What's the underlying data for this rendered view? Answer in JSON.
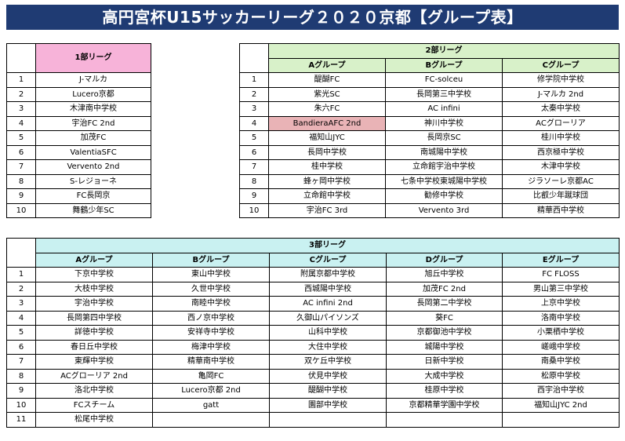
{
  "title": "高円宮杯U15サッカーリーグ２０２０京都【グループ表】",
  "league1": {
    "header": "1部リーグ",
    "rows": [
      {
        "no": "1",
        "team": "J-マルカ"
      },
      {
        "no": "2",
        "team": "Lucero京都"
      },
      {
        "no": "3",
        "team": "木津南中学校"
      },
      {
        "no": "4",
        "team": "宇治FC 2nd"
      },
      {
        "no": "5",
        "team": "加茂FC"
      },
      {
        "no": "6",
        "team": "ValentiaSFC"
      },
      {
        "no": "7",
        "team": "Vervento 2nd"
      },
      {
        "no": "8",
        "team": "S-レジョーネ"
      },
      {
        "no": "9",
        "team": "FC長岡京"
      },
      {
        "no": "10",
        "team": "舞鶴少年SC"
      }
    ]
  },
  "league2": {
    "header": "2部リーグ",
    "groups": [
      "Aグループ",
      "Bグループ",
      "Cグループ"
    ],
    "rows": [
      {
        "no": "1",
        "a": "醍醐FC",
        "b": "FC-solceu",
        "c": "修学院中学校"
      },
      {
        "no": "2",
        "a": "紫光SC",
        "b": "長岡第三中学校",
        "c": "J-マルカ 2nd"
      },
      {
        "no": "3",
        "a": "朱六FC",
        "b": "AC infini",
        "c": "太秦中学校"
      },
      {
        "no": "4",
        "a": "BandieraAFC 2nd",
        "b": "神川中学校",
        "c": "ACグローリア"
      },
      {
        "no": "5",
        "a": "福知山JYC",
        "b": "長岡京SC",
        "c": "桂川中学校"
      },
      {
        "no": "6",
        "a": "長岡中学校",
        "b": "南城陽中学校",
        "c": "西京極中学校"
      },
      {
        "no": "7",
        "a": "桂中学校",
        "b": "立命館宇治中学校",
        "c": "木津中学校"
      },
      {
        "no": "8",
        "a": "蜂ヶ岡中学校",
        "b": "七条中学校東城陽中学校",
        "c": "ジラソーレ京都AC"
      },
      {
        "no": "9",
        "a": "立命館中学校",
        "b": "勧修中学校",
        "c": "比叡少年蹴球団"
      },
      {
        "no": "10",
        "a": "宇治FC 3rd",
        "b": "Vervento 3rd",
        "c": "精華西中学校"
      }
    ]
  },
  "league3": {
    "header": "3部リーグ",
    "groups": [
      "Aグループ",
      "Bグループ",
      "Cグループ",
      "Dグループ",
      "Eグループ"
    ],
    "rows": [
      {
        "no": "1",
        "a": "下京中学校",
        "b": "東山中学校",
        "c": "附属京都中学校",
        "d": "旭丘中学校",
        "e": "FC FLOSS"
      },
      {
        "no": "2",
        "a": "大枝中学校",
        "b": "久世中学校",
        "c": "西城陽中学校",
        "d": "加茂FC 2nd",
        "e": "男山第三中学校"
      },
      {
        "no": "3",
        "a": "宇治中学校",
        "b": "南睦中学校",
        "c": "AC infini 2nd",
        "d": "長岡第二中学校",
        "e": "上京中学校"
      },
      {
        "no": "4",
        "a": "長岡第四中学校",
        "b": "西ノ京中学校",
        "c": "久御山パイソンズ",
        "d": "葵FC",
        "e": "洛南中学校"
      },
      {
        "no": "5",
        "a": "詳徳中学校",
        "b": "安祥寺中学校",
        "c": "山科中学校",
        "d": "京都御池中学校",
        "e": "小栗栖中学校"
      },
      {
        "no": "6",
        "a": "春日丘中学校",
        "b": "梅津中学校",
        "c": "大住中学校",
        "d": "城陽中学校",
        "e": "嵯峨中学校"
      },
      {
        "no": "7",
        "a": "東輝中学校",
        "b": "精華南中学校",
        "c": "双ケ丘中学校",
        "d": "日新中学校",
        "e": "南桑中学校"
      },
      {
        "no": "8",
        "a": "ACグローリア 2nd",
        "b": "亀岡FC",
        "c": "伏見中学校",
        "d": "大成中学校",
        "e": "松原中学校"
      },
      {
        "no": "9",
        "a": "洛北中学校",
        "b": "Lucero京都 2nd",
        "c": "醍醐中学校",
        "d": "桂原中学校",
        "e": "西宇治中学校"
      },
      {
        "no": "10",
        "a": "FCスチーム",
        "b": "gatt",
        "c": "園部中学校",
        "d": "京都精華学園中学校",
        "e": "福知山JYC 2nd"
      },
      {
        "no": "11",
        "a": "松尾中学校",
        "b": "",
        "c": "",
        "d": "",
        "e": ""
      }
    ]
  }
}
